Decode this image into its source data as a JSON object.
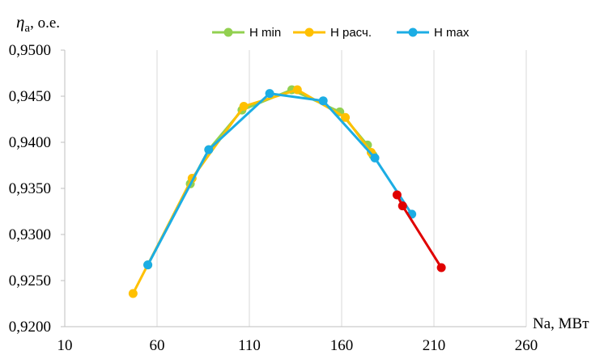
{
  "chart_data": {
    "type": "line",
    "ylabel_symbol": "η",
    "ylabel_subscript": "a",
    "ylabel_unit": ", о.е.",
    "xlabel": "Na, МВт",
    "xlim": [
      10,
      260
    ],
    "ylim": [
      0.92,
      0.95
    ],
    "xticks": [
      10,
      60,
      110,
      160,
      210,
      260
    ],
    "yticks": [
      "0,9200",
      "0,9250",
      "0,9300",
      "0,9350",
      "0,9400",
      "0,9450",
      "0,9500"
    ],
    "ytick_values": [
      0.92,
      0.925,
      0.93,
      0.935,
      0.94,
      0.945,
      0.95
    ],
    "grid": "vertical",
    "legend_position": "top-right",
    "series": [
      {
        "name": "H min",
        "color": "#92D050",
        "x": [
          55,
          78,
          88,
          106,
          133,
          159,
          174,
          177
        ],
        "y": [
          0.9267,
          0.9355,
          0.9392,
          0.9435,
          0.9457,
          0.9433,
          0.9397,
          0.9386
        ]
      },
      {
        "name": "H расч.",
        "color": "#FFC000",
        "x": [
          47,
          79,
          107,
          136,
          162,
          176
        ],
        "y": [
          0.9236,
          0.9361,
          0.9439,
          0.9457,
          0.9427,
          0.9389
        ]
      },
      {
        "name": "H max",
        "color": "#1CADE4",
        "x": [
          55,
          88,
          121,
          150,
          178,
          198
        ],
        "y": [
          0.9267,
          0.9392,
          0.9453,
          0.9445,
          0.9383,
          0.9322
        ]
      },
      {
        "name": "",
        "color": "#E00000",
        "x": [
          190,
          193,
          214
        ],
        "y": [
          0.9343,
          0.9331,
          0.9264
        ]
      }
    ]
  }
}
